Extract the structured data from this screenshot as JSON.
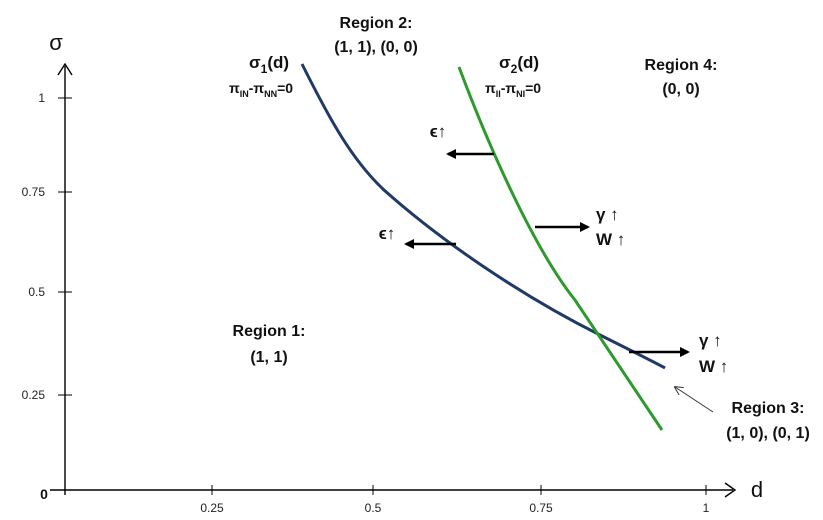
{
  "axes": {
    "x_label": "d",
    "y_label": "σ",
    "origin_label": "0",
    "x_ticks": [
      "0.25",
      "0.5",
      "0.75",
      "1"
    ],
    "y_ticks": [
      "1",
      "0.75",
      "0.5",
      "0.25"
    ]
  },
  "regions": {
    "r1": {
      "title": "Region 1:",
      "payoffs": "(1, 1)"
    },
    "r2": {
      "title": "Region 2:",
      "payoffs": "(1, 1), (0, 0)"
    },
    "r3": {
      "title": "Region 3:",
      "payoffs": "(1, 0), (0, 1)"
    },
    "r4": {
      "title": "Region 4:",
      "payoffs": "(0, 0)"
    }
  },
  "curves": {
    "sigma1": {
      "name_base": "σ",
      "name_sub": "1",
      "name_tail": "(d)",
      "cond_a": "π",
      "cond_a_sub": "IN",
      "cond_minus": "-π",
      "cond_b_sub": "NN",
      "cond_end": "=0",
      "color": "#1f3a66"
    },
    "sigma2": {
      "name_base": "σ",
      "name_sub": "2",
      "name_tail": "(d)",
      "cond_a": "π",
      "cond_a_sub": "II",
      "cond_minus": "-π",
      "cond_b_sub": "NI",
      "cond_end": "=0",
      "color": "#2e9a2e"
    }
  },
  "shifts": {
    "eps": "ϵ↑",
    "gamma": "γ ↑",
    "w": "W ↑"
  }
}
